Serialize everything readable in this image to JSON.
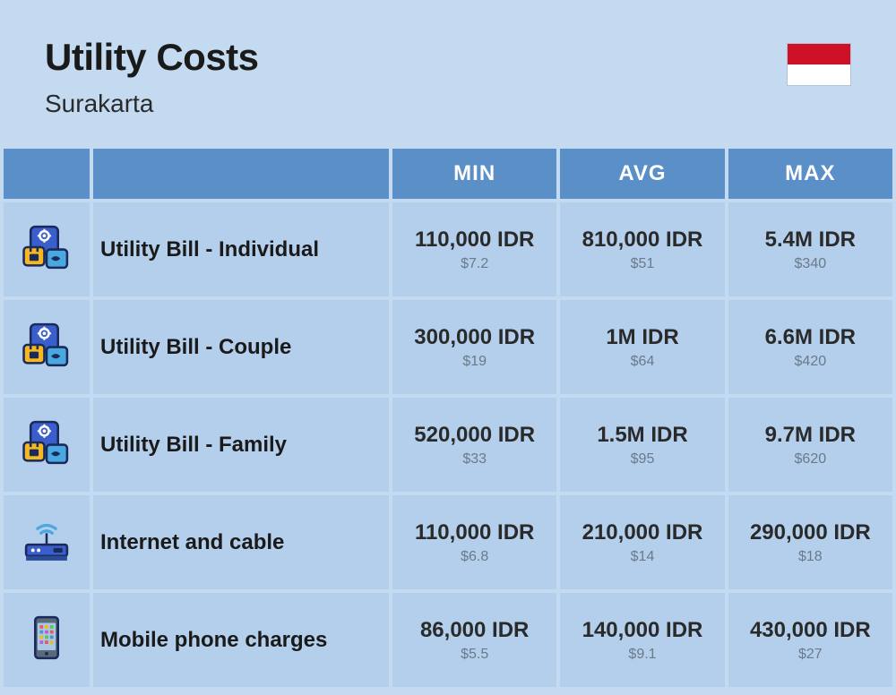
{
  "header": {
    "title": "Utility Costs",
    "subtitle": "Surakarta",
    "flag_colors": {
      "top": "#ce1126",
      "bottom": "#ffffff"
    }
  },
  "columns": {
    "min": "MIN",
    "avg": "AVG",
    "max": "MAX"
  },
  "rows": [
    {
      "icon": "utility",
      "label": "Utility Bill - Individual",
      "min": {
        "idr": "110,000 IDR",
        "usd": "$7.2"
      },
      "avg": {
        "idr": "810,000 IDR",
        "usd": "$51"
      },
      "max": {
        "idr": "5.4M IDR",
        "usd": "$340"
      }
    },
    {
      "icon": "utility",
      "label": "Utility Bill - Couple",
      "min": {
        "idr": "300,000 IDR",
        "usd": "$19"
      },
      "avg": {
        "idr": "1M IDR",
        "usd": "$64"
      },
      "max": {
        "idr": "6.6M IDR",
        "usd": "$420"
      }
    },
    {
      "icon": "utility",
      "label": "Utility Bill - Family",
      "min": {
        "idr": "520,000 IDR",
        "usd": "$33"
      },
      "avg": {
        "idr": "1.5M IDR",
        "usd": "$95"
      },
      "max": {
        "idr": "9.7M IDR",
        "usd": "$620"
      }
    },
    {
      "icon": "router",
      "label": "Internet and cable",
      "min": {
        "idr": "110,000 IDR",
        "usd": "$6.8"
      },
      "avg": {
        "idr": "210,000 IDR",
        "usd": "$14"
      },
      "max": {
        "idr": "290,000 IDR",
        "usd": "$18"
      }
    },
    {
      "icon": "phone",
      "label": "Mobile phone charges",
      "min": {
        "idr": "86,000 IDR",
        "usd": "$5.5"
      },
      "avg": {
        "idr": "140,000 IDR",
        "usd": "$9.1"
      },
      "max": {
        "idr": "430,000 IDR",
        "usd": "$27"
      }
    }
  ],
  "styling": {
    "page_bg": "#c4daf0",
    "header_bg": "#5a8fc7",
    "cell_bg": "#b4cfeb",
    "header_text_color": "#ffffff",
    "primary_text_color": "#2a2a2a",
    "secondary_text_color": "#6a7a8a",
    "title_fontsize": 42,
    "subtitle_fontsize": 28,
    "header_fontsize": 24,
    "value_primary_fontsize": 24,
    "value_secondary_fontsize": 16,
    "label_fontsize": 24
  }
}
